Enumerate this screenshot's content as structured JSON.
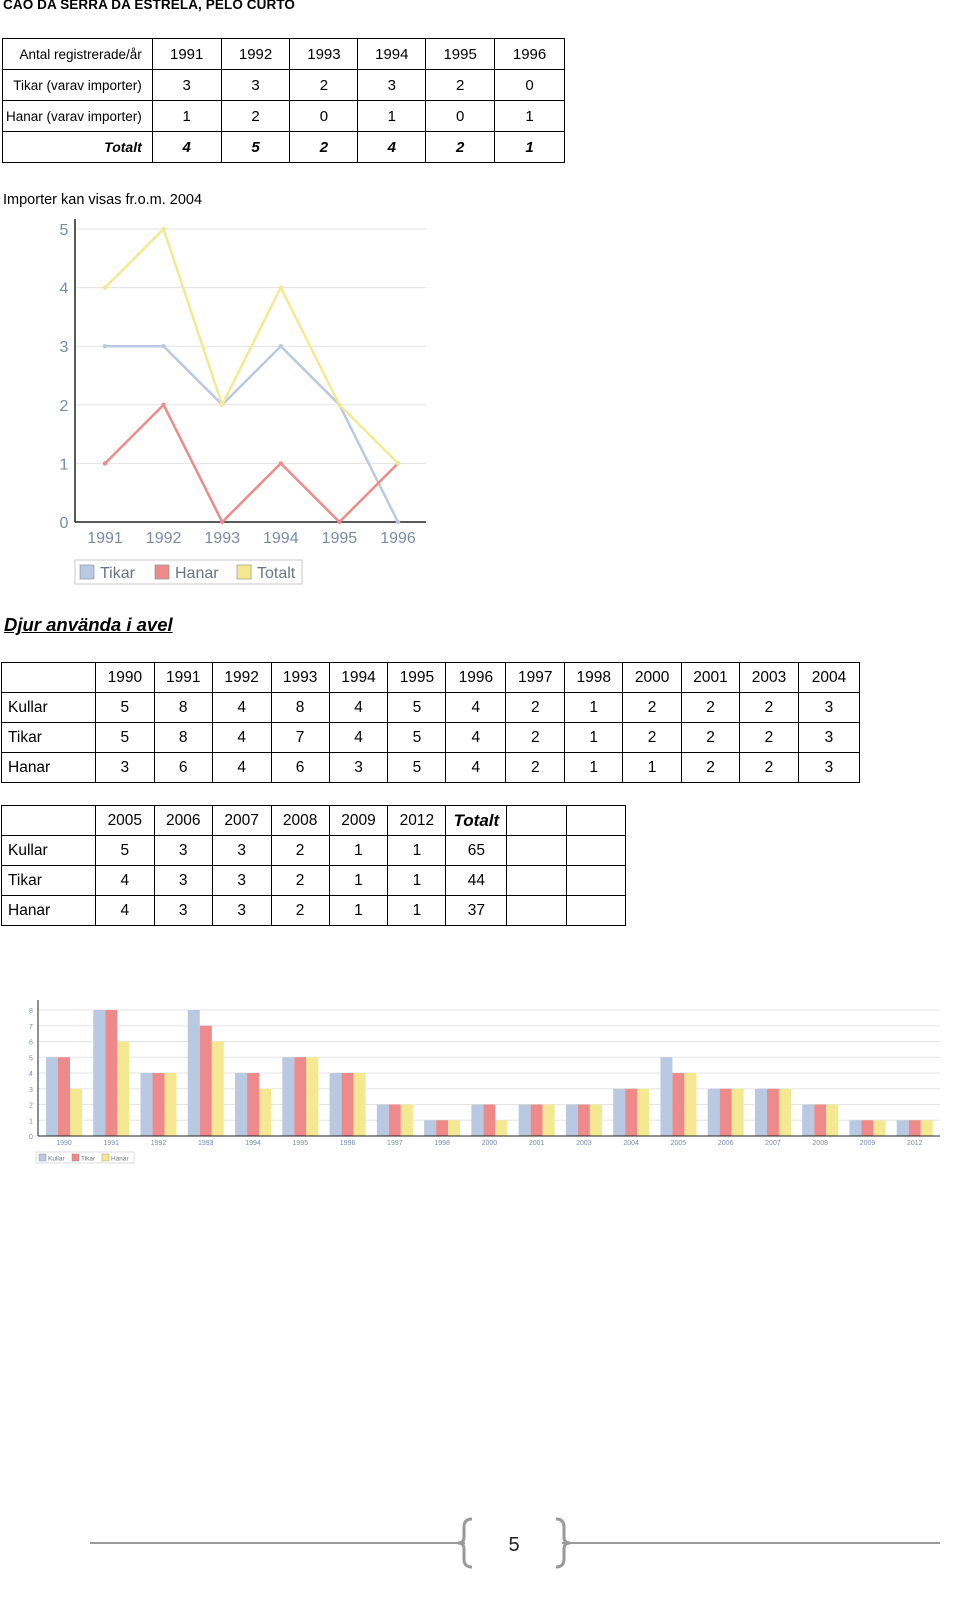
{
  "title": "CAO DA SERRA DA ESTRELA, PELO CURTO",
  "table1": {
    "header": [
      "Antal registrerade/år",
      "1991",
      "1992",
      "1993",
      "1994",
      "1995",
      "1996"
    ],
    "rows": [
      [
        "Tikar (varav importer)",
        "3",
        "3",
        "2",
        "3",
        "2",
        "0"
      ],
      [
        "Hanar (varav importer)",
        "1",
        "2",
        "0",
        "1",
        "0",
        "1"
      ],
      [
        "Totalt",
        "4",
        "5",
        "2",
        "4",
        "2",
        "1"
      ]
    ]
  },
  "import_note": "Importer kan visas fr.o.m. 2004",
  "heading2": "Djur använda i avel",
  "table2": {
    "header": [
      "",
      "1990",
      "1991",
      "1992",
      "1993",
      "1994",
      "1995",
      "1996",
      "1997",
      "1998",
      "2000",
      "2001",
      "2003",
      "2004"
    ],
    "rows": [
      [
        "Kullar",
        "5",
        "8",
        "4",
        "8",
        "4",
        "5",
        "4",
        "2",
        "1",
        "2",
        "2",
        "2",
        "3"
      ],
      [
        "Tikar",
        "5",
        "8",
        "4",
        "7",
        "4",
        "5",
        "4",
        "2",
        "1",
        "2",
        "2",
        "2",
        "3"
      ],
      [
        "Hanar",
        "3",
        "6",
        "4",
        "6",
        "3",
        "5",
        "4",
        "2",
        "1",
        "1",
        "2",
        "2",
        "3"
      ]
    ]
  },
  "table3": {
    "header": [
      "",
      "2005",
      "2006",
      "2007",
      "2008",
      "2009",
      "2012",
      "Totalt",
      "",
      ""
    ],
    "rows": [
      [
        "Kullar",
        "5",
        "3",
        "3",
        "2",
        "1",
        "1",
        "65",
        "",
        ""
      ],
      [
        "Tikar",
        "4",
        "3",
        "3",
        "2",
        "1",
        "1",
        "44",
        "",
        ""
      ],
      [
        "Hanar",
        "4",
        "3",
        "3",
        "2",
        "1",
        "1",
        "37",
        "",
        ""
      ]
    ]
  },
  "chart_data": [
    {
      "type": "line",
      "x": [
        "1991",
        "1992",
        "1993",
        "1994",
        "1995",
        "1996"
      ],
      "yticks": [
        "0",
        "1",
        "2",
        "3",
        "4",
        "5"
      ],
      "ylim": [
        0,
        5
      ],
      "grid": true,
      "legend": "bottom",
      "series": [
        {
          "name": "Tikar",
          "values": [
            3,
            3,
            2,
            3,
            2,
            0
          ],
          "color": "#b8c9e1"
        },
        {
          "name": "Hanar",
          "values": [
            1,
            2,
            0,
            1,
            0,
            1
          ],
          "color": "#ee8a8a"
        },
        {
          "name": "Totalt",
          "values": [
            4,
            5,
            2,
            4,
            2,
            1
          ],
          "color": "#f4e992"
        }
      ]
    },
    {
      "type": "bar",
      "categories": [
        "1990",
        "1991",
        "1992",
        "1993",
        "1994",
        "1995",
        "1996",
        "1997",
        "1998",
        "2000",
        "2001",
        "2003",
        "2004",
        "2005",
        "2006",
        "2007",
        "2008",
        "2009",
        "2012"
      ],
      "yticks": [
        "0",
        "1",
        "2",
        "3",
        "4",
        "5",
        "6",
        "7",
        "8"
      ],
      "ylim": [
        0,
        8
      ],
      "grid": true,
      "legend": "bottom-left",
      "series": [
        {
          "name": "Kullar",
          "values": [
            5,
            8,
            4,
            8,
            4,
            5,
            4,
            2,
            1,
            2,
            2,
            2,
            3,
            5,
            3,
            3,
            2,
            1,
            1
          ],
          "color": "#b8c9e1"
        },
        {
          "name": "Tikar",
          "values": [
            5,
            8,
            4,
            7,
            4,
            5,
            4,
            2,
            1,
            2,
            2,
            2,
            3,
            4,
            3,
            3,
            2,
            1,
            1
          ],
          "color": "#ee8a8a"
        },
        {
          "name": "Hanar",
          "values": [
            3,
            6,
            4,
            6,
            3,
            5,
            4,
            2,
            1,
            1,
            2,
            2,
            3,
            4,
            3,
            3,
            2,
            1,
            1
          ],
          "color": "#f4e992"
        }
      ]
    }
  ],
  "footer": {
    "page_number": "5"
  }
}
